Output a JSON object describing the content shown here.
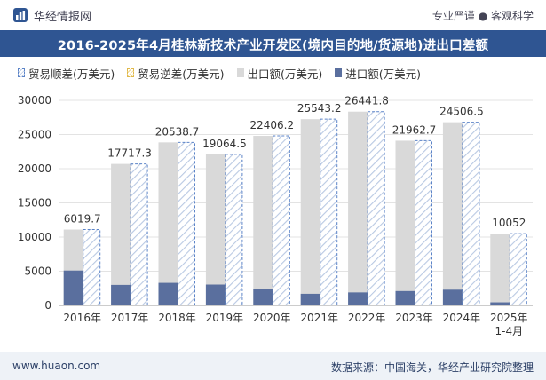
{
  "header": {
    "brand": "华经情报网",
    "tagline": "专业严谨 ● 客观科学",
    "title": "2016-2025年4月桂林新技术产业开发区(境内目的地/货源地)进出口差额"
  },
  "legend": {
    "surplus": "贸易顺差(万美元)",
    "deficit": "贸易逆差(万美元)",
    "export": "出口额(万美元)",
    "import": "进口额(万美元)"
  },
  "footer": {
    "url": "www.huaon.com",
    "source": "数据来源：中国海关，华经产业研究院整理"
  },
  "colors": {
    "title_bg": "#2f5592",
    "export": "#d9d9d9",
    "import": "#5a6f9e",
    "surplus_stroke": "#5c84c8",
    "surplus_hatch": "#b9c9e3"
  },
  "chart_data": {
    "type": "bar",
    "categories": [
      "2016年",
      "2017年",
      "2018年",
      "2019年",
      "2020年",
      "2021年",
      "2022年",
      "2023年",
      "2024年",
      "2025年\n1-4月"
    ],
    "series": [
      {
        "name": "出口额(万美元)",
        "values": [
          11100,
          20700,
          23850,
          22100,
          24800,
          27250,
          28350,
          24100,
          26800,
          10500
        ]
      },
      {
        "name": "进口额(万美元)",
        "values": [
          5100,
          3000,
          3300,
          3050,
          2400,
          1700,
          1900,
          2100,
          2300,
          450
        ]
      },
      {
        "name": "贸易顺差(万美元)",
        "values": [
          6019.7,
          17717.3,
          20538.7,
          19064.5,
          22406.2,
          25543.2,
          26441.8,
          21962.7,
          24506.5,
          10052
        ]
      },
      {
        "name": "贸易逆差(万美元)",
        "values": [
          0,
          0,
          0,
          0,
          0,
          0,
          0,
          0,
          0,
          0
        ]
      }
    ],
    "data_labels": [
      "6019.7",
      "17717.3",
      "20538.7",
      "19064.5",
      "22406.2",
      "25543.2",
      "26441.8",
      "21962.7",
      "24506.5",
      "10052"
    ],
    "y_ticks": [
      "0",
      "5000",
      "10000",
      "15000",
      "20000",
      "25000",
      "30000"
    ],
    "ylim": [
      0,
      30000
    ],
    "grid": true,
    "legend_position": "top-left"
  }
}
